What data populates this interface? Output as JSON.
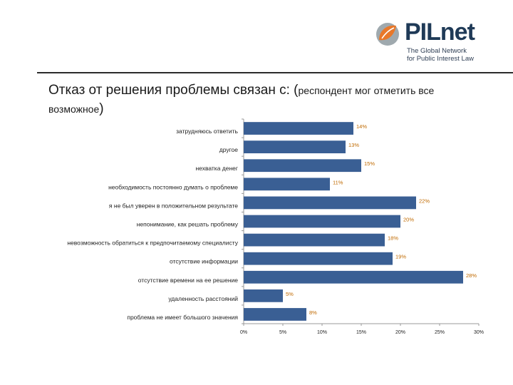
{
  "logo": {
    "word": "PILnet",
    "tagline": "The Global Network\nfor Public Interest Law",
    "colors": {
      "orange": "#e8782a",
      "gray": "#7f8c8d",
      "navy": "#1f3a57"
    }
  },
  "title": {
    "main": "Отказ от решения проблемы связан с: (",
    "sub": "респондент мог отметить все возможное",
    "close": ")"
  },
  "chart_data": {
    "type": "bar",
    "orientation": "horizontal",
    "categories": [
      "затрудняюсь ответить",
      "другое",
      "нехватка денег",
      "необходимость постоянно думать о проблеме",
      "я не был уверен в положительном результате",
      "непонимание, как решать проблему",
      "невозможность обратиться к предпочитаемому специалисту",
      "отсутствие информации",
      "отсутствие времени на ее решение",
      "удаленность расстояний",
      "проблема не имеет большого значения"
    ],
    "values": [
      14,
      13,
      15,
      11,
      22,
      20,
      18,
      19,
      28,
      5,
      8
    ],
    "value_labels": [
      "14%",
      "13%",
      "15%",
      "11%",
      "22%",
      "20%",
      "18%",
      "19%",
      "28%",
      "5%",
      "8%"
    ],
    "xlim": [
      0,
      30
    ],
    "ticks": [
      0,
      5,
      10,
      15,
      20,
      25,
      30
    ],
    "tick_labels": [
      "0%",
      "5%",
      "10%",
      "15%",
      "20%",
      "25%",
      "30%"
    ],
    "bar_color": "#3a5f94",
    "label_color": "#c06a00",
    "grid": false,
    "legend": "none"
  }
}
